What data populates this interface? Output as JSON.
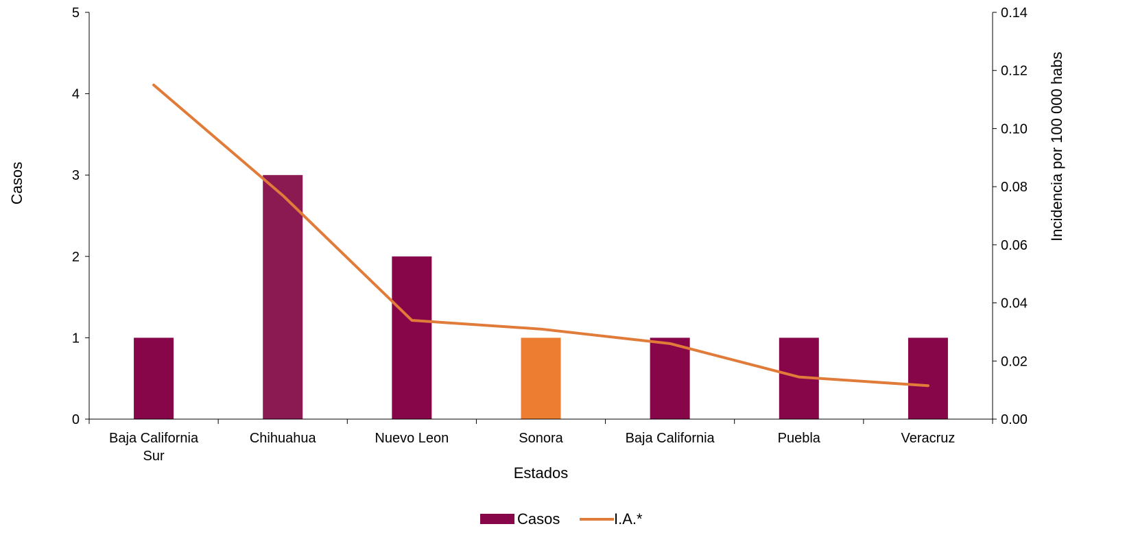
{
  "chart_data": {
    "type": "bar",
    "categories": [
      [
        "Baja California",
        "Sur"
      ],
      [
        "Chihuahua"
      ],
      [
        "Nuevo Leon"
      ],
      [
        "Sonora"
      ],
      [
        "Baja California"
      ],
      [
        "Puebla"
      ],
      [
        "Veracruz"
      ]
    ],
    "series": [
      {
        "name": "Casos",
        "type": "bar",
        "axis": "left",
        "color": "#87064A",
        "point_colors": [
          "#87064A",
          "#8B1A53",
          "#87064A",
          "#ED7D31",
          "#87064A",
          "#87064A",
          "#87064A"
        ],
        "values": [
          1,
          3,
          2,
          1,
          1,
          1,
          1
        ]
      },
      {
        "name": "I.A.*",
        "type": "line",
        "axis": "right",
        "color": "#E07B39",
        "values": [
          0.115,
          0.077,
          0.034,
          0.031,
          0.026,
          0.0145,
          0.0115
        ]
      }
    ],
    "xlabel": "Estados",
    "ylabel": "Casos",
    "y2label": "Incidencia por 100 000 habs",
    "ylim": [
      0,
      5
    ],
    "yticks": [
      "0",
      "1",
      "2",
      "3",
      "4",
      "5"
    ],
    "y2lim": [
      0,
      0.14
    ],
    "y2ticks": [
      "0.00",
      "0.02",
      "0.04",
      "0.06",
      "0.08",
      "0.10",
      "0.12",
      "0.14"
    ],
    "grid": false,
    "legend_position": "bottom"
  }
}
